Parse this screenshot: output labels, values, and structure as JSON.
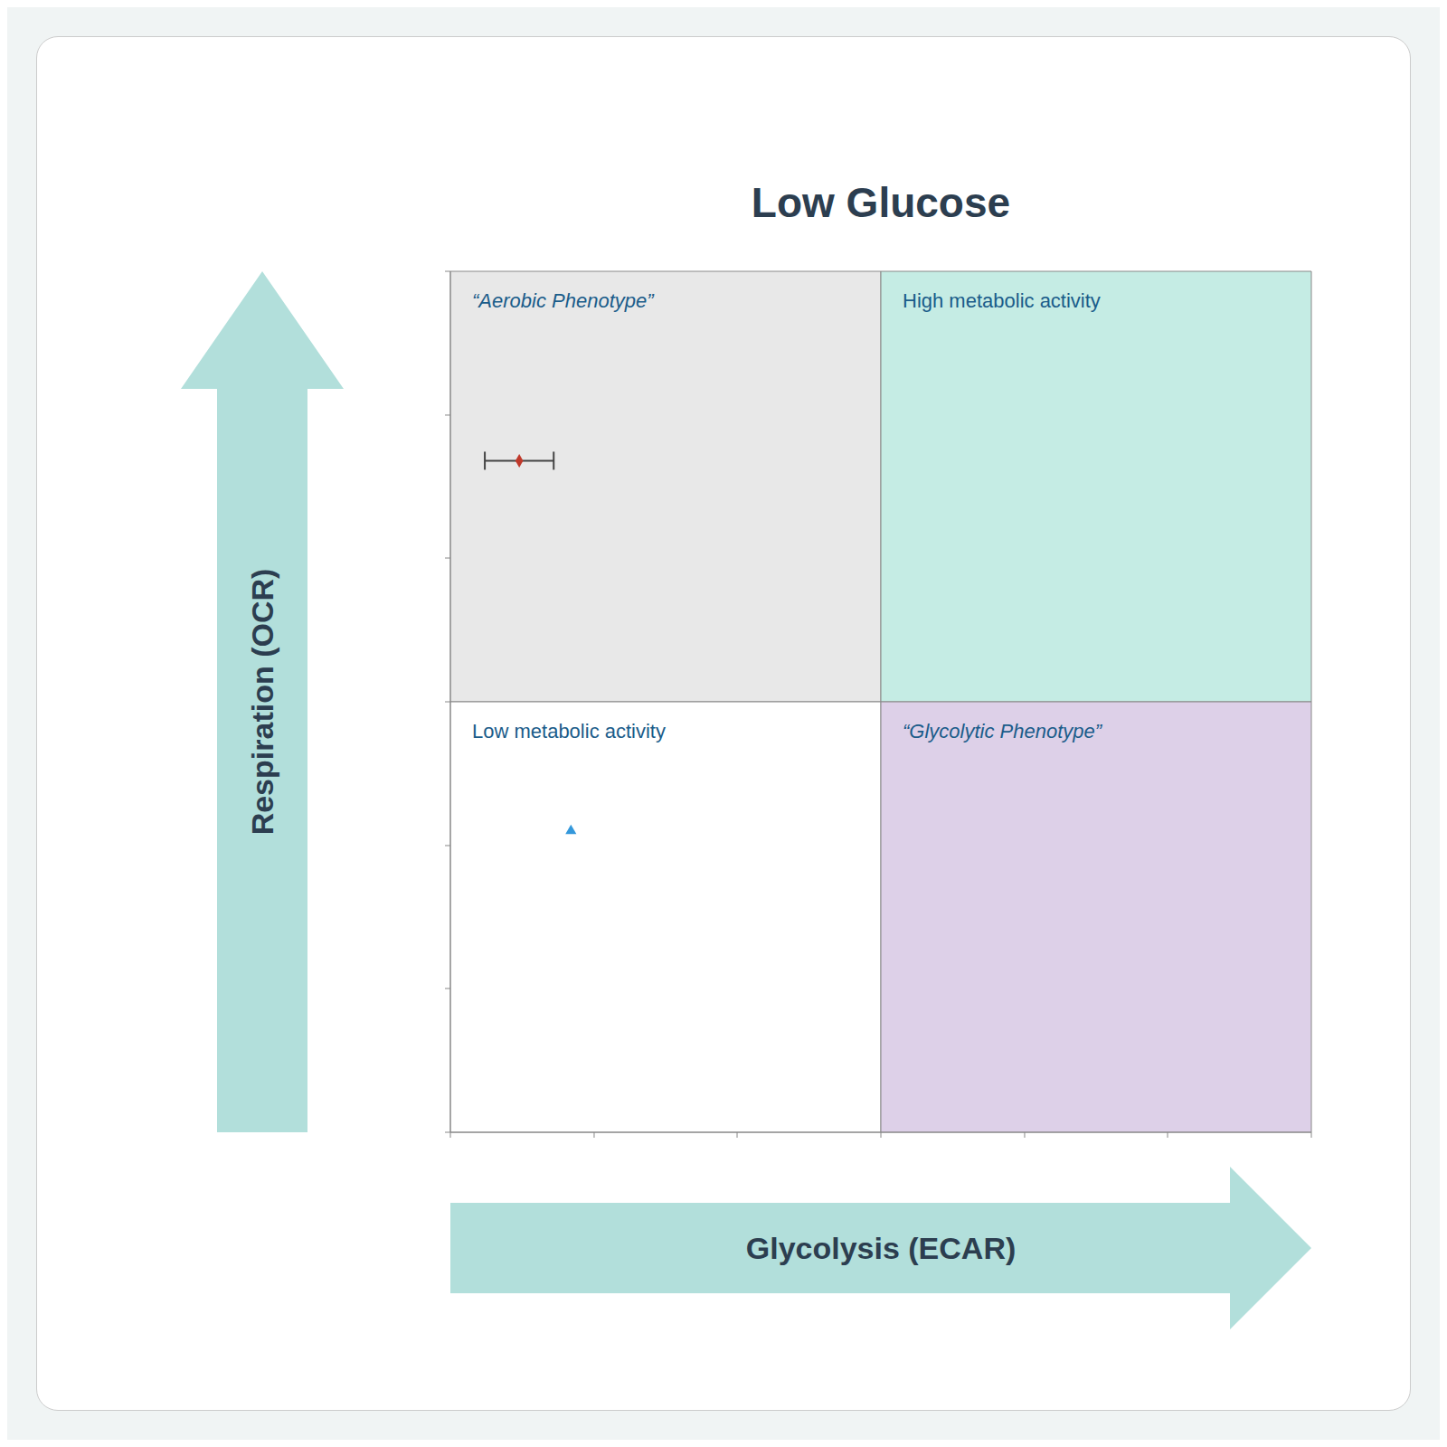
{
  "chart_data": {
    "type": "scatter",
    "title": "Low Glucose",
    "x_label": "Glycolysis (ECAR)",
    "y_label": "Respiration (OCR)",
    "xlim": [
      0,
      1
    ],
    "ylim": [
      0,
      1
    ],
    "xticks": [
      0.0,
      0.167,
      0.333,
      0.5,
      0.667,
      0.833,
      1.0
    ],
    "yticks": [
      0.0,
      0.167,
      0.333,
      0.5,
      0.667,
      0.833,
      1.0
    ],
    "tick_labels": false,
    "grid": false,
    "annotations": [
      {
        "text": "“Aerobic Phenotype”",
        "color": "#e8e8e8"
      },
      {
        "text": "High metabolic activity",
        "color": "#c5ece4"
      },
      {
        "text": "Low metabolic activity",
        "color": "#ffffff"
      },
      {
        "text": "“Glycolytic Phenotype”",
        "color": "#ddd0e8"
      }
    ],
    "series": [
      {
        "color": "#c0392b",
        "marker": "diamond",
        "x": [
          0.08
        ],
        "y": [
          0.78
        ],
        "xerr": [
          0.04
        ]
      },
      {
        "color": "#3498db",
        "marker": "triangle",
        "x": [
          0.14
        ],
        "y": [
          0.35
        ],
        "xerr": [
          0
        ]
      }
    ]
  }
}
